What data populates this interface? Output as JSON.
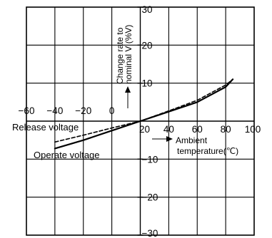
{
  "chart_data": {
    "type": "line",
    "x_axis": {
      "label_line1": "Ambient",
      "label_line2": "temperature(℃)",
      "range": [
        -60,
        100
      ],
      "ticks": [
        -60,
        -40,
        -20,
        0,
        20,
        40,
        60,
        80,
        100
      ],
      "tick_labels": [
        "−60",
        "−40",
        "−20",
        "0",
        "20",
        "40",
        "60",
        "80",
        "100"
      ]
    },
    "y_axis": {
      "label_line1": "Change rate to",
      "label_line2": "nominal V (%V)",
      "range": [
        -30,
        30
      ],
      "ticks": [
        -30,
        -20,
        -10,
        10,
        20,
        30
      ],
      "tick_labels": [
        "−30",
        "−20",
        "−10",
        "10",
        "20",
        "30"
      ]
    },
    "grid": true,
    "series": [
      {
        "name": "Operate voltage",
        "style": "solid",
        "color": "#000000",
        "x": [
          -40,
          -20,
          0,
          20,
          40,
          60,
          80,
          85
        ],
        "y": [
          -7.2,
          -5.0,
          -2.5,
          0,
          2.5,
          5.0,
          9.0,
          11.0
        ]
      },
      {
        "name": "Release voltage",
        "style": "dashed",
        "color": "#000000",
        "x": [
          -40,
          -20,
          0,
          20,
          40,
          60,
          80,
          85
        ],
        "y": [
          -5.5,
          -3.7,
          -1.8,
          0,
          2.7,
          5.5,
          9.5,
          11.0
        ]
      }
    ]
  }
}
